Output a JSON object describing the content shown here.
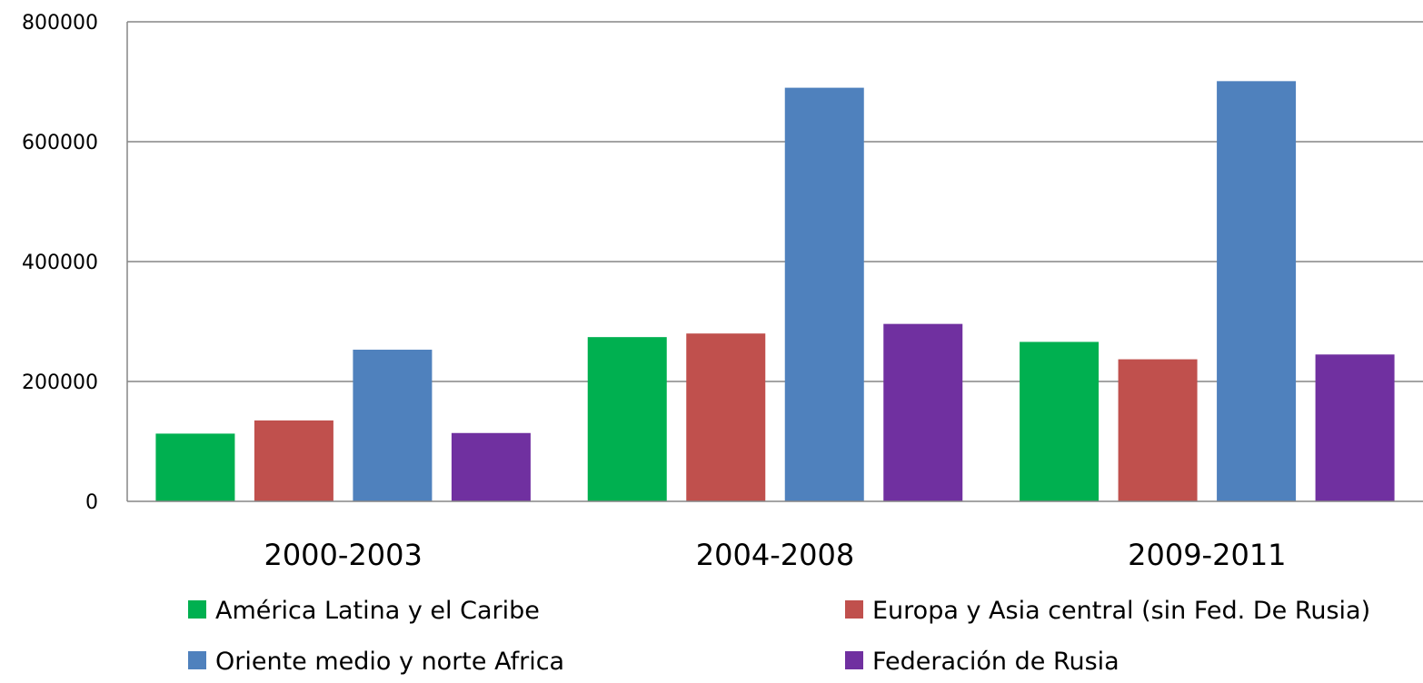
{
  "chart_data": {
    "type": "bar",
    "categories": [
      "2000-2003",
      "2004-2008",
      "2009-2011"
    ],
    "series": [
      {
        "name": "América Latina y el Caribe",
        "color": "#00b050",
        "values": [
          113000,
          274000,
          266000
        ]
      },
      {
        "name": "Europa y Asia central (sin Fed. De Rusia)",
        "color": "#c0504d",
        "values": [
          135000,
          280000,
          237000
        ]
      },
      {
        "name": "Oriente medio y norte Africa",
        "color": "#4f81bd",
        "values": [
          253000,
          690000,
          701000
        ]
      },
      {
        "name": "Federación de Rusia",
        "color": "#7030a0",
        "values": [
          114000,
          296000,
          245000
        ]
      }
    ],
    "ylim": [
      0,
      800000
    ],
    "yticks": [
      0,
      200000,
      400000,
      600000,
      800000
    ],
    "ytick_labels": [
      "0",
      "200000",
      "400000",
      "600000",
      "800000"
    ],
    "grid": true,
    "legend_position": "bottom"
  }
}
